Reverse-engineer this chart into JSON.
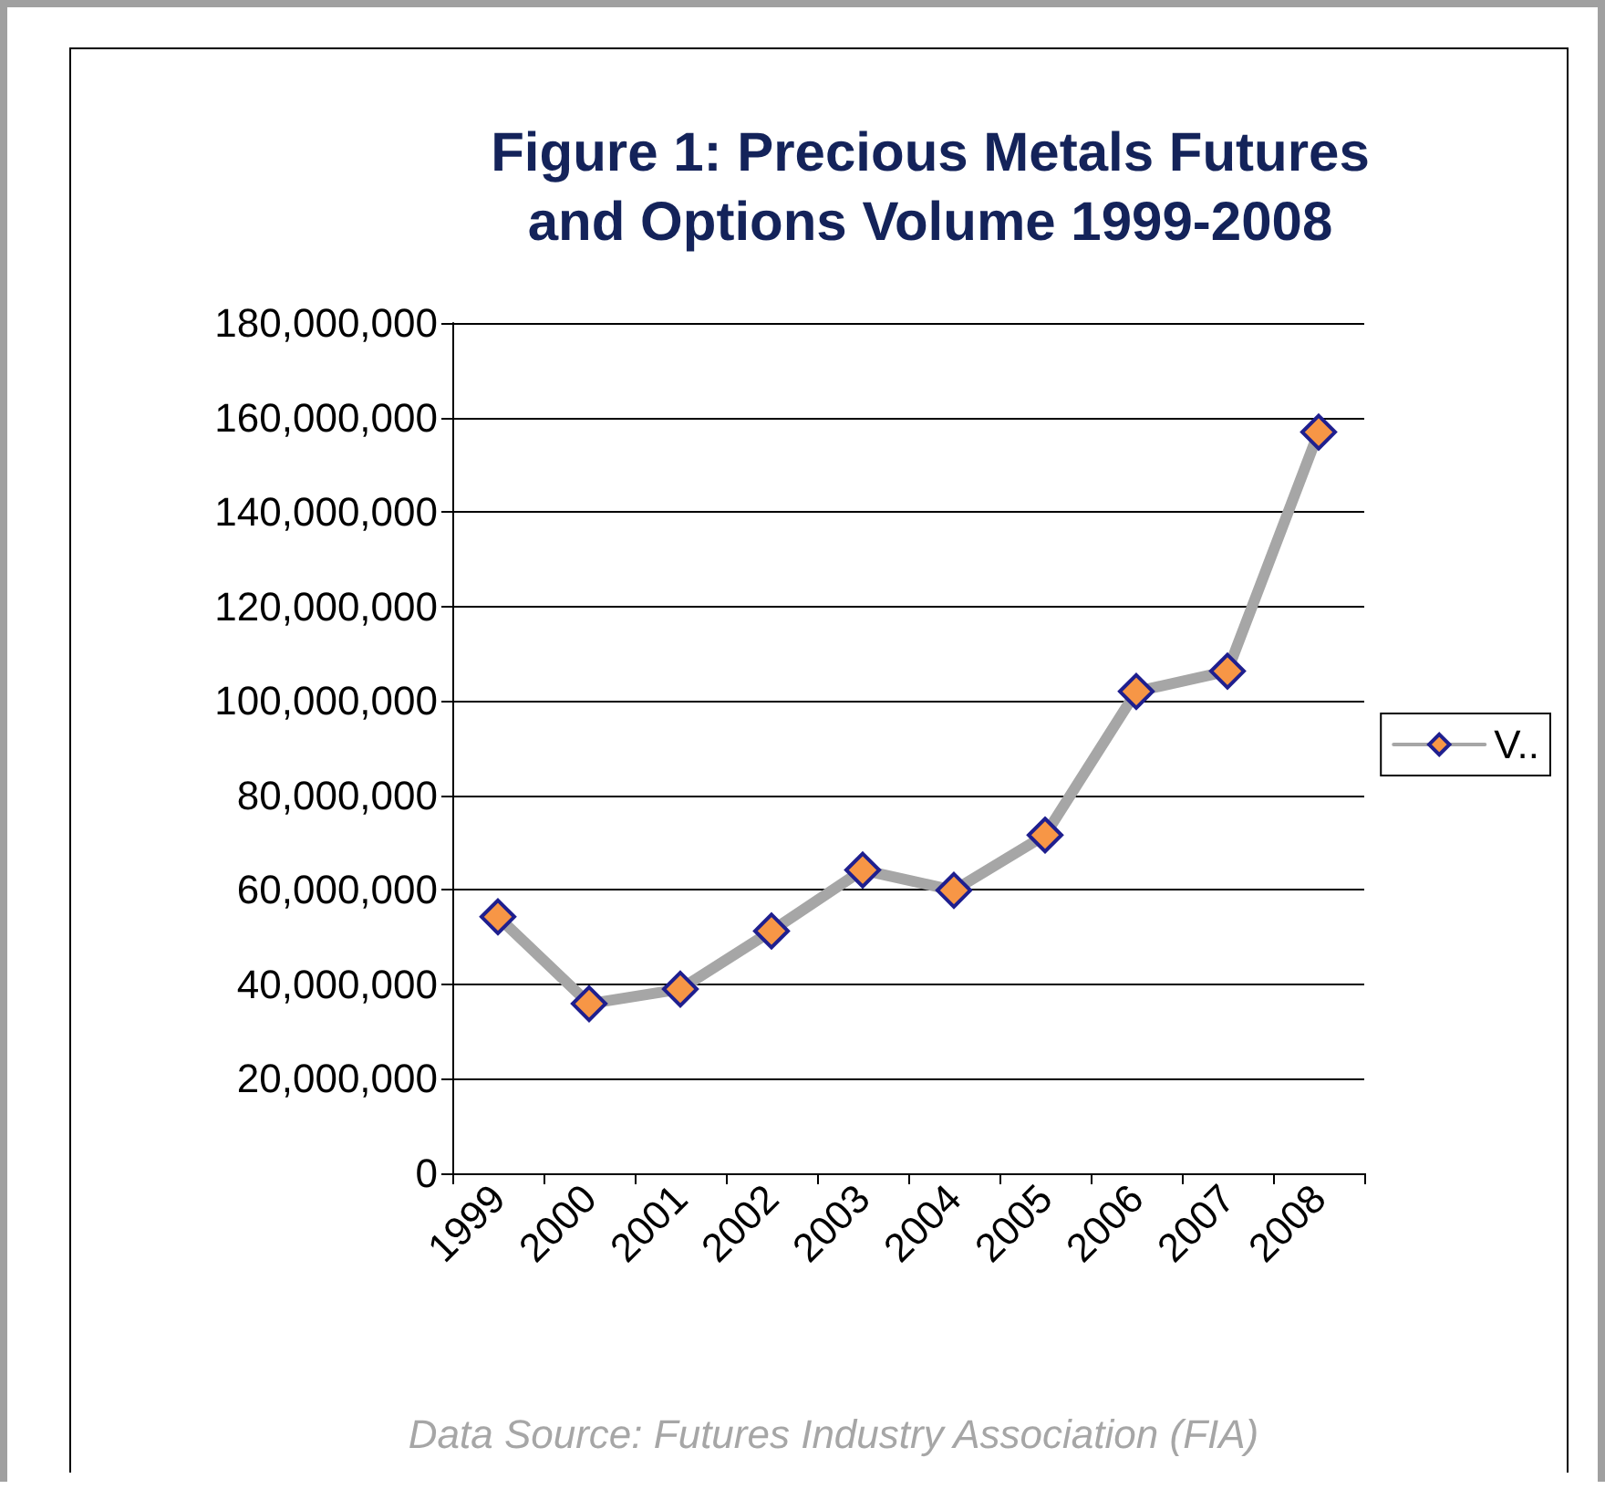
{
  "chart_data": {
    "type": "line",
    "title": "Figure 1: Precious Metals Futures and Options Volume 1999-2008",
    "categories": [
      "1999",
      "2000",
      "2001",
      "2002",
      "2003",
      "2004",
      "2005",
      "2006",
      "2007",
      "2008"
    ],
    "series": [
      {
        "name": "V..",
        "color": "#a6a6a6",
        "values": [
          54300000,
          35900000,
          39000000,
          51300000,
          64200000,
          59900000,
          71600000,
          102000000,
          106300000,
          156900000
        ]
      }
    ],
    "ylim": [
      0,
      180000000
    ],
    "yticks": [
      0,
      {
        "value": 20000000,
        "label": "20,000,000"
      },
      {
        "value": 40000000,
        "label": "40,000,000"
      },
      {
        "value": 60000000,
        "label": "60,000,000"
      },
      {
        "value": 80000000,
        "label": "80,000,000"
      },
      {
        "value": 100000000,
        "label": "100,000,000"
      },
      {
        "value": 120000000,
        "label": "120,000,000"
      },
      {
        "value": 140000000,
        "label": "140,000,000"
      },
      {
        "value": 160000000,
        "label": "160,000,000"
      },
      {
        "value": 180000000,
        "label": "180,000,000"
      }
    ],
    "grid": "y",
    "legend": "right",
    "marker": "diamond",
    "line_style": "solid",
    "annotations": [
      "Data Source: Futures Industry Association (FIA)"
    ]
  }
}
